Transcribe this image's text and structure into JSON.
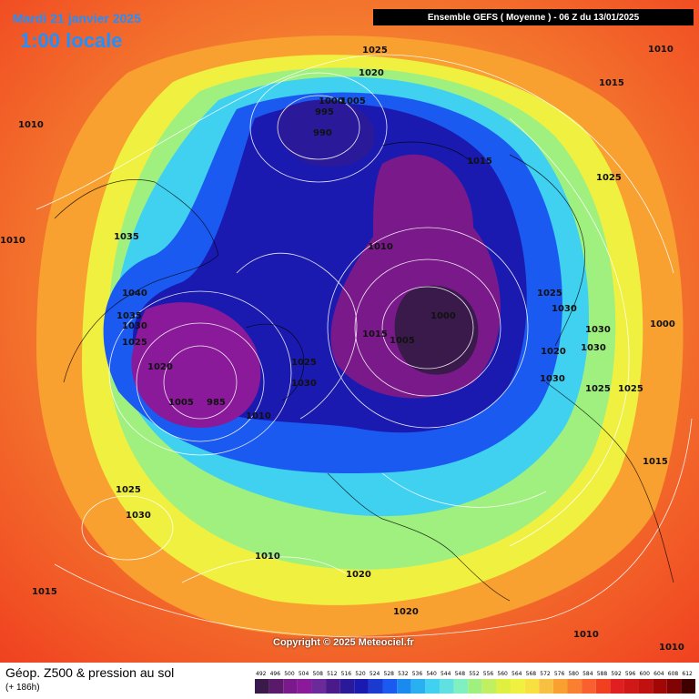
{
  "header": {
    "date": "Mardi 21 janvier 2025",
    "time": "1:00 locale",
    "title": "Ensemble GEFS  ( Moyenne )  -  06 Z du 13/01/2025"
  },
  "copyright": "Copyright © 2025 Meteociel.fr",
  "footer": {
    "product": "Géop. Z500 & pression au sol",
    "lead": "(+ 186h)"
  },
  "pressure_labels": [
    "1010",
    "1015",
    "1025",
    "1020",
    "1000",
    "1005",
    "995",
    "990",
    "1015",
    "1025",
    "1010",
    "1035",
    "1040",
    "1035",
    "1030",
    "1025",
    "1020",
    "1005",
    "985",
    "1000",
    "1025",
    "1030",
    "1010",
    "1015",
    "1005",
    "1000",
    "1025",
    "1030",
    "1030",
    "1030",
    "1020",
    "1030",
    "1025",
    "1025",
    "1015",
    "1010",
    "1010",
    "1025",
    "1030",
    "1015",
    "1010",
    "1020",
    "1020",
    "1010",
    "1010"
  ],
  "scale": {
    "ticks": [
      "492",
      "496",
      "500",
      "504",
      "508",
      "512",
      "516",
      "520",
      "524",
      "528",
      "532",
      "536",
      "540",
      "544",
      "548",
      "552",
      "556",
      "560",
      "564",
      "568",
      "572",
      "576",
      "580",
      "584",
      "588",
      "592",
      "596",
      "600",
      "604",
      "608",
      "612"
    ],
    "colors": [
      "#3a1a4a",
      "#5a1a6a",
      "#7a1a8a",
      "#8a1a9a",
      "#6a2a9a",
      "#4a1a8a",
      "#2a1a9a",
      "#1a1ab0",
      "#1a3ad0",
      "#1a5af0",
      "#1a8af0",
      "#2ab0f0",
      "#40d0f0",
      "#60e0e0",
      "#80f0c0",
      "#a0f080",
      "#c0f060",
      "#e0f040",
      "#f0f040",
      "#f8e040",
      "#f8c040",
      "#f8a030",
      "#f88030",
      "#f86030",
      "#f04020",
      "#e02020",
      "#d01818",
      "#c01010",
      "#a00808",
      "#800404",
      "#400000"
    ]
  }
}
